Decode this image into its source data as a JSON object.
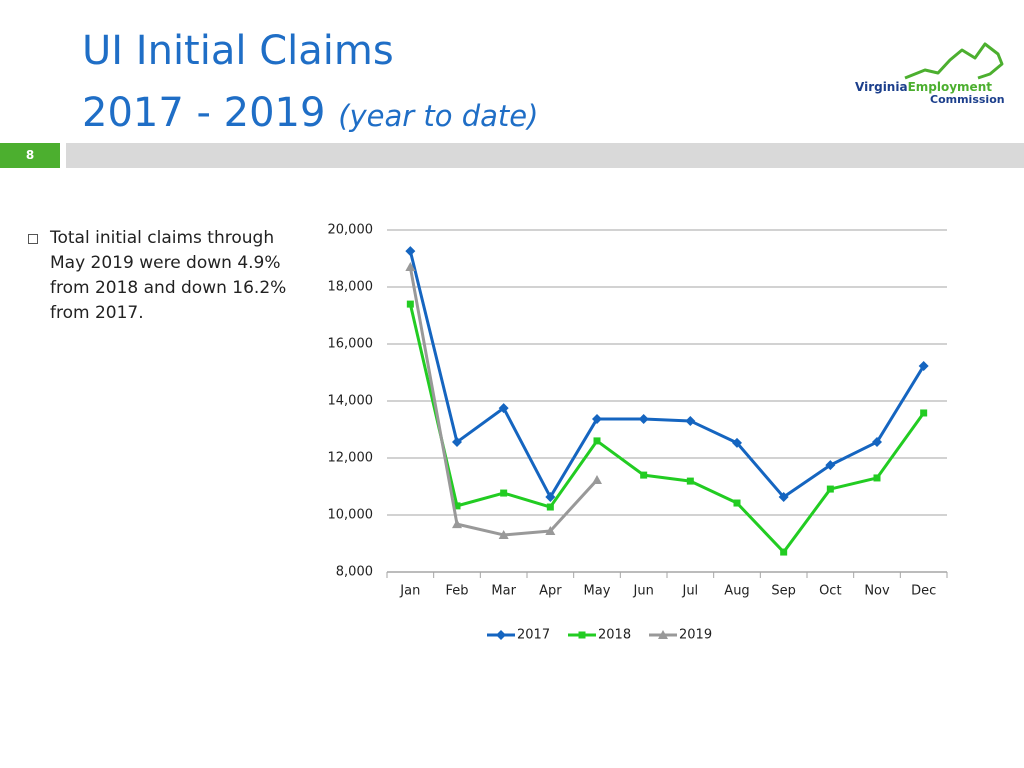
{
  "header": {
    "title": "UI Initial Claims",
    "subtitle": "2017 - 2019",
    "subtitle_note": "(year to date)"
  },
  "slide_number": "8",
  "logo": {
    "line1a": "Virginia",
    "line1b": "Employment",
    "line2": "Commission"
  },
  "bullet": "Total initial claims through May 2019 were down 4.9% from 2018 and down 16.2% from 2017.",
  "chart_data": {
    "type": "line",
    "categories": [
      "Jan",
      "Feb",
      "Mar",
      "Apr",
      "May",
      "Jun",
      "Jul",
      "Aug",
      "Sep",
      "Oct",
      "Nov",
      "Dec"
    ],
    "series": [
      {
        "name": "2017",
        "color": "#1565c0",
        "marker": "diamond",
        "values": [
          19260,
          12560,
          13750,
          10630,
          13370,
          13370,
          13300,
          12530,
          10630,
          11750,
          12560,
          15230
        ]
      },
      {
        "name": "2018",
        "color": "#22cc22",
        "marker": "square",
        "values": [
          17400,
          10320,
          10770,
          10280,
          12600,
          11400,
          11190,
          10420,
          8700,
          10910,
          11300,
          13580
        ]
      },
      {
        "name": "2019",
        "color": "#999999",
        "marker": "triangle",
        "values": [
          18700,
          9680,
          9300,
          9440,
          11230,
          null,
          null,
          null,
          null,
          null,
          null,
          null
        ]
      }
    ],
    "ylim": [
      8000,
      20000
    ],
    "yticks": [
      {
        "value": 8000,
        "label": "8,000"
      },
      {
        "value": 10000,
        "label": "10,000"
      },
      {
        "value": 12000,
        "label": "12,000"
      },
      {
        "value": 14000,
        "label": "14,000"
      },
      {
        "value": 16000,
        "label": "16,000"
      },
      {
        "value": 18000,
        "label": "18,000"
      },
      {
        "value": 20000,
        "label": "20,000"
      }
    ],
    "grid": true,
    "legend": "bottom"
  }
}
